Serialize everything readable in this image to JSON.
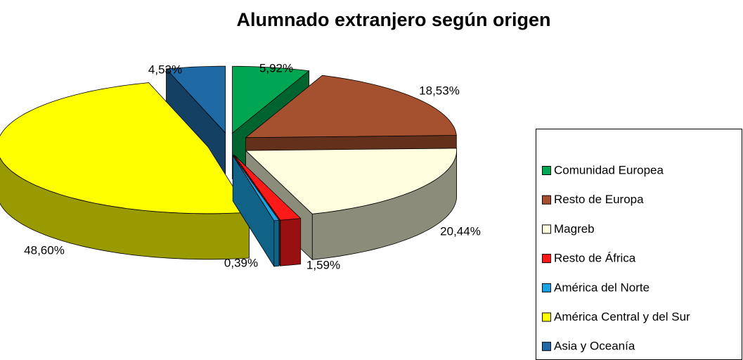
{
  "chart_data": {
    "type": "pie3d",
    "title": "Alumnado extranjero según origen",
    "categories": [
      "Comunidad Europea",
      "Resto de Europa",
      "Magreb",
      "Resto de África",
      "América del Norte",
      "América Central y del Sur",
      "Asia y Oceanía"
    ],
    "values": [
      5.92,
      18.53,
      20.44,
      1.59,
      0.39,
      48.6,
      4.53
    ],
    "value_labels": [
      "5,92%",
      "18,53%",
      "20,44%",
      "1,59%",
      "0,39%",
      "48,60%",
      "4,53%"
    ],
    "colors": [
      "#00a651",
      "#a5502e",
      "#ffffe0",
      "#ff1a1a",
      "#1aa3e0",
      "#ffff00",
      "#1f6aa5"
    ],
    "legend": "right"
  }
}
